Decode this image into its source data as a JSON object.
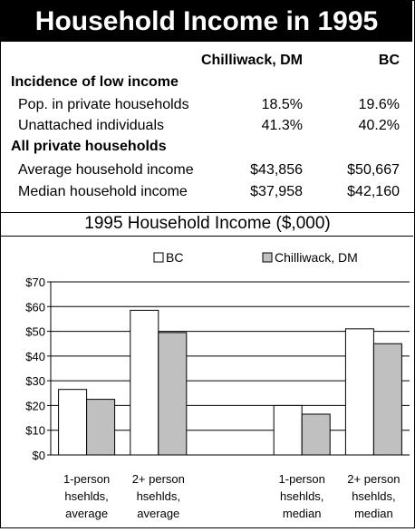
{
  "title": "Household Income in 1995",
  "table": {
    "col_headers": [
      "Chilliwack, DM",
      "BC"
    ],
    "sections": [
      {
        "heading": "Incidence of low income",
        "rows": [
          {
            "label": "Pop. in private households",
            "chilliwack": "18.5%",
            "bc": "19.6%"
          },
          {
            "label": "Unattached individuals",
            "chilliwack": "41.3%",
            "bc": "40.2%"
          }
        ]
      },
      {
        "heading": "All private households",
        "rows": [
          {
            "label": "Average household income",
            "chilliwack": "$43,856",
            "bc": "$50,667"
          },
          {
            "label": "Median household income",
            "chilliwack": "$37,958",
            "bc": "$42,160"
          }
        ]
      }
    ]
  },
  "chart_data": {
    "type": "bar",
    "title": "1995 Household Income ($,000)",
    "categories": [
      [
        "1-person",
        "hsehlds,",
        "average"
      ],
      [
        "2+ person",
        "hsehlds,",
        "average"
      ],
      [
        "",
        "",
        ""
      ],
      [
        "1-person",
        "hsehlds,",
        "median"
      ],
      [
        "2+ person",
        "hsehlds,",
        "median"
      ]
    ],
    "series": [
      {
        "name": "BC",
        "color": "#ffffff",
        "values": [
          26.5,
          58.5,
          null,
          20,
          51
        ]
      },
      {
        "name": "Chilliwack, DM",
        "color": "#c0c0c0",
        "values": [
          22.5,
          49.5,
          null,
          16.5,
          45
        ]
      }
    ],
    "ylim": [
      0,
      70
    ],
    "yticks": [
      "$0",
      "$10",
      "$20",
      "$30",
      "$40",
      "$50",
      "$60",
      "$70"
    ],
    "legend_position": "top"
  }
}
